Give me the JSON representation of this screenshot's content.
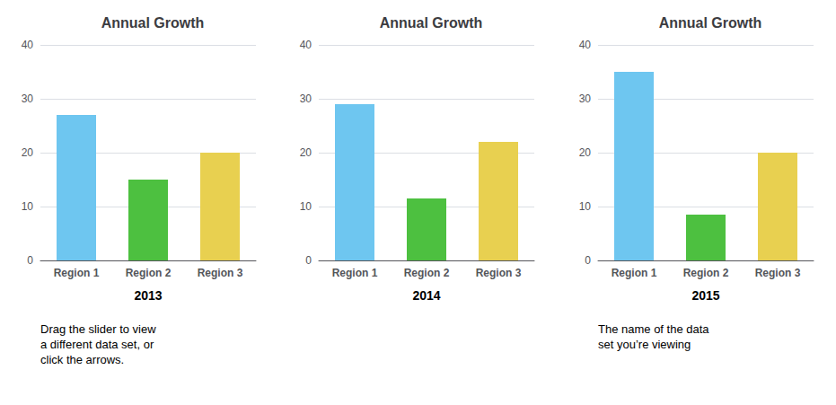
{
  "chart_data": [
    {
      "type": "bar",
      "title": "Annual Growth",
      "xlabel": "2013",
      "categories": [
        "Region 1",
        "Region 2",
        "Region 3"
      ],
      "values": [
        27,
        15,
        20
      ],
      "colors": [
        "#6EC6F0",
        "#4DC040",
        "#E8D050"
      ],
      "ylim": [
        0,
        40
      ],
      "yticks": [
        0,
        10,
        20,
        30,
        40
      ],
      "grid": true,
      "annotation": "Drag the slider to view\na different data set, or\nclick the arrows."
    },
    {
      "type": "bar",
      "title": "Annual Growth",
      "xlabel": "2014",
      "categories": [
        "Region 1",
        "Region 2",
        "Region 3"
      ],
      "values": [
        29,
        11.5,
        22
      ],
      "colors": [
        "#6EC6F0",
        "#4DC040",
        "#E8D050"
      ],
      "ylim": [
        0,
        40
      ],
      "yticks": [
        0,
        10,
        20,
        30,
        40
      ],
      "grid": true
    },
    {
      "type": "bar",
      "title": "Annual Growth",
      "xlabel": "2015",
      "categories": [
        "Region 1",
        "Region 2",
        "Region 3"
      ],
      "values": [
        35,
        8.5,
        20
      ],
      "colors": [
        "#6EC6F0",
        "#4DC040",
        "#E8D050"
      ],
      "ylim": [
        0,
        40
      ],
      "yticks": [
        0,
        10,
        20,
        30,
        40
      ],
      "grid": true,
      "annotation": "The name of the data\nset you’re viewing"
    }
  ]
}
